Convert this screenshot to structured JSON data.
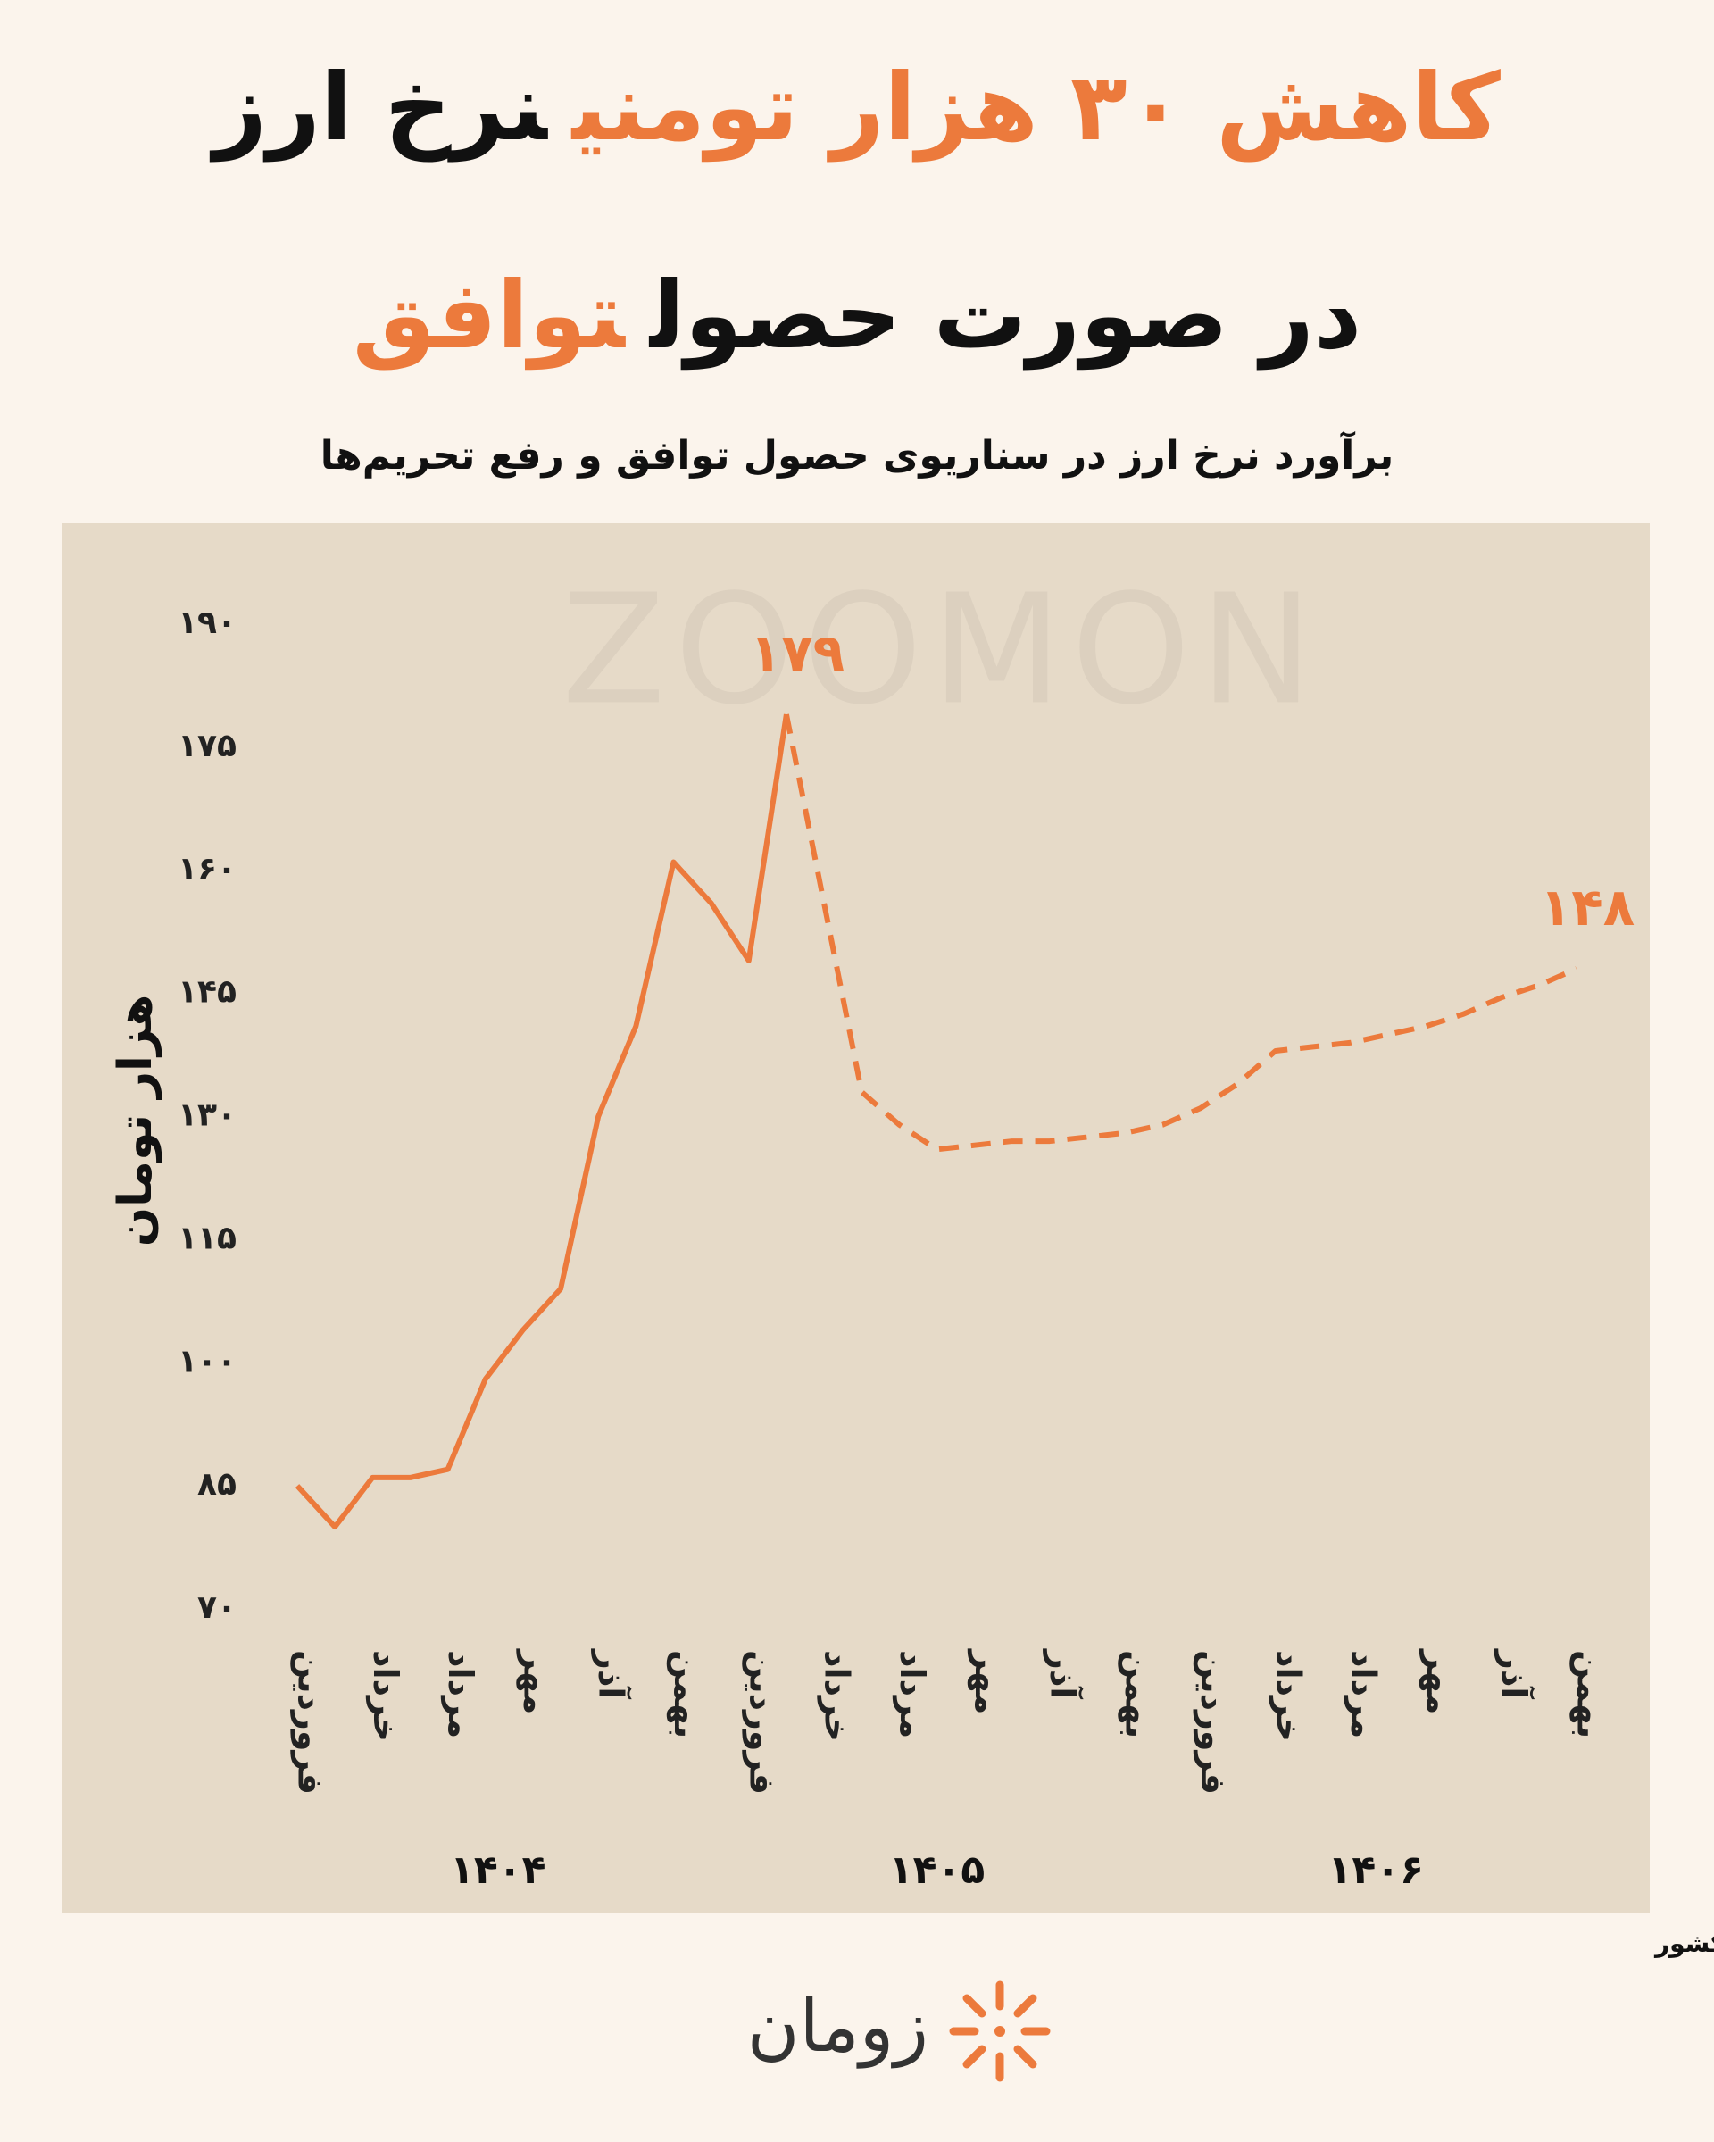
{
  "chart_data": {
    "type": "line",
    "title_lines": [
      [
        {
          "text": "کاهش ۳۰ هزار تومنی",
          "color": "#ec7a3c"
        },
        {
          "text": "نرخ ارز",
          "color": "#111111"
        }
      ],
      [
        {
          "text": "در صورت حصول",
          "color": "#111111"
        },
        {
          "text": "توافق",
          "color": "#ec7a3c"
        }
      ]
    ],
    "subtitle": "برآورد نرخ ارز در سناریوی حصول توافق و رفع تحریم‌ها",
    "y_label": "هزار تومان",
    "watermark": "ZOOMON",
    "categories": [
      "فروردین",
      null,
      "خرداد",
      null,
      "مرداد",
      null,
      "مهر",
      null,
      "آذر",
      null,
      "بهمن",
      null,
      "فروردین",
      null,
      "خرداد",
      null,
      "مرداد",
      null,
      "مهر",
      null,
      "آذر",
      null,
      "بهمن",
      null,
      "فروردین",
      null,
      "خرداد",
      null,
      "مرداد",
      null,
      "مهر",
      null,
      "آذر",
      null,
      "بهمن"
    ],
    "x_groups": [
      "۱۴۰۴",
      "۱۴۰۵",
      "۱۴۰۶"
    ],
    "series": [
      {
        "color": "#ec7a3c",
        "line_style": "solid",
        "values": [
          85,
          80,
          86,
          86,
          87,
          98,
          104,
          109,
          130,
          141,
          161,
          156,
          149,
          179,
          null,
          null,
          null,
          null,
          null,
          null,
          null,
          null,
          null,
          null,
          null,
          null,
          null,
          null,
          null,
          null,
          null,
          null,
          null,
          null,
          null
        ],
        "value_labels": [
          null,
          null,
          null,
          null,
          null,
          null,
          null,
          null,
          null,
          null,
          null,
          null,
          null,
          "۱۷۹",
          null,
          null,
          null,
          null,
          null,
          null,
          null,
          null,
          null,
          null,
          null,
          null,
          null,
          null,
          null,
          null,
          null,
          null,
          null,
          null,
          null
        ]
      },
      {
        "color": "#ec7a3c",
        "line_style": "dashed",
        "values": [
          null,
          null,
          null,
          null,
          null,
          null,
          null,
          null,
          null,
          null,
          null,
          null,
          null,
          179,
          156,
          133,
          129,
          126,
          126.5,
          127,
          127,
          127.5,
          128,
          129,
          131,
          134,
          138,
          138.5,
          139,
          140,
          141,
          142.5,
          144.5,
          146,
          148
        ],
        "value_labels": [
          null,
          null,
          null,
          null,
          null,
          null,
          null,
          null,
          null,
          null,
          null,
          null,
          null,
          null,
          null,
          null,
          null,
          null,
          null,
          null,
          null,
          null,
          null,
          null,
          null,
          null,
          null,
          null,
          null,
          null,
          null,
          null,
          null,
          null,
          "۱۴۸"
        ]
      }
    ],
    "ylim": [
      70,
      190
    ],
    "yticks": [
      {
        "value": 70,
        "label": "۷۰"
      },
      {
        "value": 85,
        "label": "۸۵"
      },
      {
        "value": 100,
        "label": "۱۰۰"
      },
      {
        "value": 115,
        "label": "۱۱۵"
      },
      {
        "value": 130,
        "label": "۱۳۰"
      },
      {
        "value": 145,
        "label": "۱۴۵"
      },
      {
        "value": 160,
        "label": "۱۶۰"
      },
      {
        "value": 175,
        "label": "۱۷۵"
      },
      {
        "value": 190,
        "label": "۱۹۰"
      }
    ],
    "grid": false,
    "source": "منبع داده: سازمان برنامه و بودجه کشور",
    "logo_text": "زومان"
  }
}
